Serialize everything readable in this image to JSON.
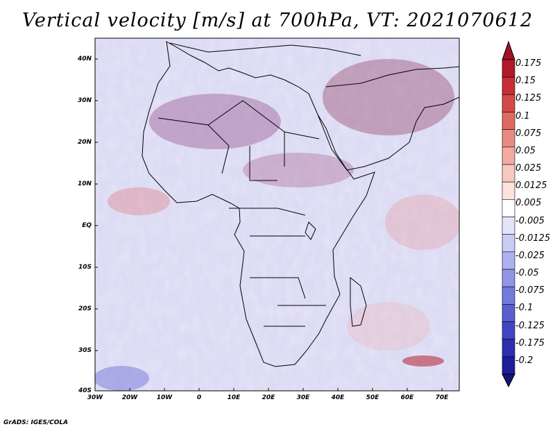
{
  "title": "Vertical velocity [m/s] at 700hPa, VT: 2021070612",
  "footer": "GrADS: IGES/COLA",
  "y_axis_labels": [
    "40N",
    "30N",
    "20N",
    "10N",
    "EQ",
    "10S",
    "20S",
    "30S",
    "40S"
  ],
  "x_axis_labels": [
    "30W",
    "20W",
    "10W",
    "0",
    "10E",
    "20E",
    "30E",
    "40E",
    "50E",
    "60E",
    "70E"
  ],
  "colorbar": {
    "labels": [
      "0.175",
      "0.15",
      "0.125",
      "0.1",
      "0.075",
      "0.05",
      "0.025",
      "0.0125",
      "0.005",
      "-0.005",
      "-0.0125",
      "-0.025",
      "-0.05",
      "-0.075",
      "-0.1",
      "-0.125",
      "-0.175",
      "-0.2"
    ],
    "colors": [
      "#b2182b",
      "#c62f35",
      "#d44a48",
      "#e06a63",
      "#ea8a82",
      "#f2aaa2",
      "#f8c9c2",
      "#fbe2de",
      "#ffffff",
      "#e3e5fb",
      "#c9ccf5",
      "#adb1ee",
      "#9095e6",
      "#7479dc",
      "#5a5ed0",
      "#4245c2",
      "#2d2fb0",
      "#1c1d98"
    ],
    "top_color": "#a11126",
    "bottom_color": "#13137a"
  },
  "map_colors": {
    "background": "#dcdcf4",
    "border": "#000000"
  }
}
